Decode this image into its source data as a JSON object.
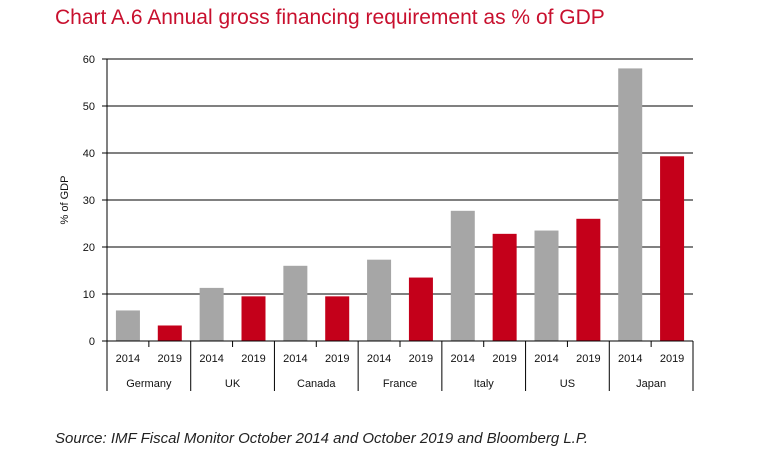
{
  "chart_data": {
    "type": "bar",
    "title": "Chart A.6 Annual gross financing requirement as % of GDP",
    "ylabel": "% of GDP",
    "ylim": [
      0,
      60
    ],
    "yticks": [
      0,
      10,
      20,
      30,
      40,
      50,
      60
    ],
    "grid": true,
    "groups": [
      {
        "name": "Germany",
        "bars": [
          {
            "label": "2014",
            "value": 6.5
          },
          {
            "label": "2019",
            "value": 3.3
          }
        ]
      },
      {
        "name": "UK",
        "bars": [
          {
            "label": "2014",
            "value": 11.3
          },
          {
            "label": "2019",
            "value": 9.5
          }
        ]
      },
      {
        "name": "Canada",
        "bars": [
          {
            "label": "2014",
            "value": 16.0
          },
          {
            "label": "2019",
            "value": 9.5
          }
        ]
      },
      {
        "name": "France",
        "bars": [
          {
            "label": "2014",
            "value": 17.3
          },
          {
            "label": "2019",
            "value": 13.5
          }
        ]
      },
      {
        "name": "Italy",
        "bars": [
          {
            "label": "2014",
            "value": 27.7
          },
          {
            "label": "2019",
            "value": 22.8
          }
        ]
      },
      {
        "name": "US",
        "bars": [
          {
            "label": "2014",
            "value": 23.5
          },
          {
            "label": "2019",
            "value": 26.0
          }
        ]
      },
      {
        "name": "Japan",
        "bars": [
          {
            "label": "2014",
            "value": 58.0
          },
          {
            "label": "2019",
            "value": 39.3
          }
        ]
      }
    ],
    "colors": {
      "2014": "#a6a6a6",
      "2019": "#c4001a",
      "title": "#c8102e"
    }
  },
  "source": "Source: IMF Fiscal Monitor October 2014 and October 2019 and Bloomberg L.P."
}
